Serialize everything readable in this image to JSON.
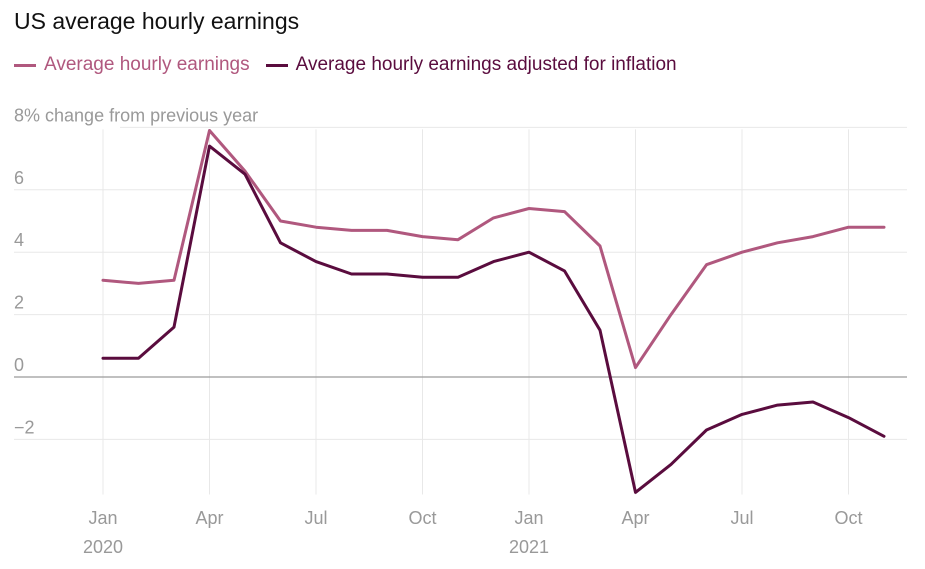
{
  "chart_data": {
    "type": "line",
    "title": "US average hourly earnings",
    "ylabel": "% change from previous year",
    "ylim": [
      -3.7,
      7.8
    ],
    "y_ticks": [
      -2,
      0,
      2,
      4,
      6,
      8
    ],
    "y_tick_labels": [
      "−2",
      "0",
      "2",
      "4",
      "6",
      "8"
    ],
    "x_ticks": [
      {
        "month": 0,
        "label": "Jan",
        "sublabel": "2020"
      },
      {
        "month": 3,
        "label": "Apr",
        "sublabel": ""
      },
      {
        "month": 6,
        "label": "Jul",
        "sublabel": ""
      },
      {
        "month": 9,
        "label": "Oct",
        "sublabel": ""
      },
      {
        "month": 12,
        "label": "Jan",
        "sublabel": "2021"
      },
      {
        "month": 15,
        "label": "Apr",
        "sublabel": ""
      },
      {
        "month": 18,
        "label": "Jul",
        "sublabel": ""
      },
      {
        "month": 21,
        "label": "Oct",
        "sublabel": ""
      }
    ],
    "x": [
      "2020-01",
      "2020-02",
      "2020-03",
      "2020-04",
      "2020-05",
      "2020-06",
      "2020-07",
      "2020-08",
      "2020-09",
      "2020-10",
      "2020-11",
      "2020-12",
      "2021-01",
      "2021-02",
      "2021-03",
      "2021-04",
      "2021-05",
      "2021-06",
      "2021-07",
      "2021-08",
      "2021-09",
      "2021-10",
      "2021-11"
    ],
    "series": [
      {
        "name": "Average hourly earnings",
        "color": "#b0587e",
        "values": [
          3.1,
          3.0,
          3.1,
          7.9,
          6.6,
          5.0,
          4.8,
          4.7,
          4.7,
          4.5,
          4.4,
          5.1,
          5.4,
          5.3,
          4.2,
          0.3,
          2.0,
          3.6,
          4.0,
          4.3,
          4.5,
          4.8,
          4.8
        ]
      },
      {
        "name": "Average hourly earnings adjusted for inflation",
        "color": "#5a0c3e",
        "values": [
          0.6,
          0.6,
          1.6,
          7.4,
          6.5,
          4.3,
          3.7,
          3.3,
          3.3,
          3.2,
          3.2,
          3.7,
          4.0,
          3.4,
          1.5,
          -3.7,
          -2.8,
          -1.7,
          -1.2,
          -0.9,
          -0.8,
          -1.3,
          -1.9
        ]
      }
    ],
    "grid": true,
    "legend": "top-left"
  }
}
